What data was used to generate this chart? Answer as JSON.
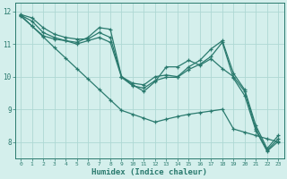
{
  "xlabel": "Humidex (Indice chaleur)",
  "bg_color": "#d4efec",
  "grid_color": "#aed8d4",
  "line_color": "#2a7a6e",
  "xlim": [
    -0.5,
    23.5
  ],
  "ylim": [
    7.5,
    12.25
  ],
  "yticks": [
    8,
    9,
    10,
    11,
    12
  ],
  "xticks": [
    0,
    1,
    2,
    3,
    4,
    5,
    6,
    7,
    8,
    9,
    10,
    11,
    12,
    13,
    14,
    15,
    16,
    17,
    18,
    19,
    20,
    21,
    22,
    23
  ],
  "series": [
    [
      11.9,
      11.8,
      11.5,
      11.3,
      11.2,
      11.15,
      11.15,
      11.35,
      11.2,
      10.0,
      9.8,
      9.75,
      10.0,
      10.05,
      10.0,
      10.3,
      10.5,
      10.85,
      11.1,
      10.1,
      9.6,
      8.5,
      7.8,
      8.2
    ],
    [
      11.85,
      11.55,
      11.25,
      11.15,
      11.1,
      11.05,
      11.2,
      11.5,
      11.45,
      10.0,
      9.75,
      9.55,
      9.85,
      10.3,
      10.3,
      10.5,
      10.35,
      10.55,
      10.25,
      10.0,
      9.55,
      8.4,
      7.75,
      8.1
    ],
    [
      11.88,
      11.7,
      11.35,
      11.2,
      11.1,
      11.0,
      11.1,
      11.2,
      11.05,
      9.98,
      9.72,
      9.65,
      9.88,
      9.98,
      9.98,
      10.22,
      10.38,
      10.62,
      11.05,
      9.95,
      9.42,
      8.35,
      7.72,
      8.02
    ],
    [
      11.88,
      11.55,
      11.22,
      10.89,
      10.57,
      10.25,
      9.93,
      9.61,
      9.29,
      8.97,
      8.85,
      8.73,
      8.61,
      8.7,
      8.78,
      8.85,
      8.9,
      8.95,
      9.0,
      8.4,
      8.3,
      8.2,
      8.1,
      8.0
    ]
  ]
}
